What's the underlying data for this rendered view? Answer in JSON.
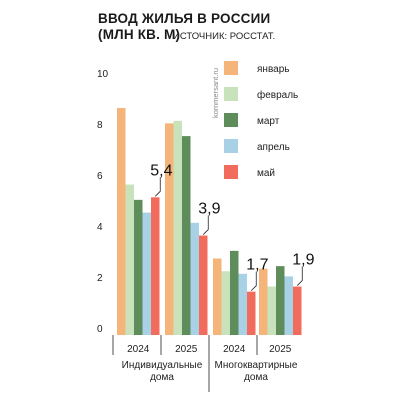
{
  "title_line1": "ВВОД ЖИЛЬЯ В РОССИИ",
  "title_line2": "(МЛН КВ. М)",
  "source": "ИСТОЧНИК: РОССТАТ.",
  "watermark": "kommersant.ru",
  "chart_data": {
    "type": "bar",
    "ylim": [
      0,
      10
    ],
    "yticks": [
      0,
      2,
      4,
      6,
      8,
      10
    ],
    "grid": false,
    "legend_position": "top-right",
    "groups": [
      {
        "name": "Индивидуальные дома",
        "label_lines": [
          "Индивидуальные",
          "дома"
        ]
      },
      {
        "name": "Многоквартирные дома",
        "label_lines": [
          "Многоквартирные",
          "дома"
        ]
      }
    ],
    "categories": [
      {
        "year": "2024",
        "group": 0
      },
      {
        "year": "2025",
        "group": 0
      },
      {
        "year": "2024",
        "group": 1
      },
      {
        "year": "2025",
        "group": 1
      }
    ],
    "series": [
      {
        "name": "январь",
        "color": "#f5b57a",
        "values": [
          8.9,
          8.3,
          3.0,
          2.6
        ]
      },
      {
        "name": "февраль",
        "color": "#c8e3bb",
        "values": [
          5.9,
          8.4,
          2.5,
          1.9
        ]
      },
      {
        "name": "март",
        "color": "#5e8c5a",
        "values": [
          5.3,
          7.8,
          3.3,
          2.7
        ]
      },
      {
        "name": "апрель",
        "color": "#a9d1e6",
        "values": [
          4.8,
          4.4,
          2.4,
          2.3
        ]
      },
      {
        "name": "май",
        "color": "#f26c5e",
        "values": [
          5.4,
          3.9,
          1.7,
          1.9
        ]
      }
    ],
    "annotations": [
      {
        "category": 0,
        "series": 4,
        "text": "5,4"
      },
      {
        "category": 1,
        "series": 4,
        "text": "3,9"
      },
      {
        "category": 2,
        "series": 4,
        "text": "1,7"
      },
      {
        "category": 3,
        "series": 4,
        "text": "1,9"
      }
    ]
  }
}
